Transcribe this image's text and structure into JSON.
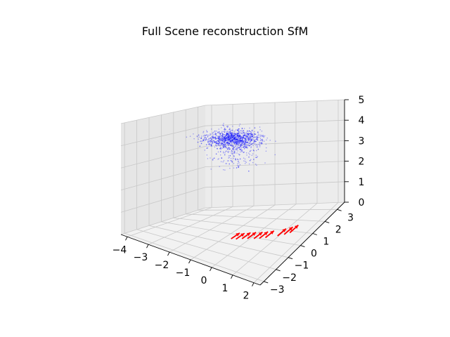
{
  "chart_data": {
    "type": "scatter",
    "projection": "3d",
    "title": "Full Scene reconstruction SfM",
    "xlabel": "",
    "ylabel": "",
    "zlabel": "",
    "xlim": [
      -4.3,
      2.3
    ],
    "ylim": [
      -3.3,
      3.6
    ],
    "zlim": [
      0,
      5
    ],
    "x_ticks": [
      "−4",
      "−3",
      "−2",
      "−1",
      "0",
      "1",
      "2"
    ],
    "y_ticks": [
      "−3",
      "−2",
      "−1",
      "0",
      "1",
      "2",
      "3"
    ],
    "z_ticks": [
      "0",
      "1",
      "2",
      "3",
      "4",
      "5"
    ],
    "grid": true,
    "point_cloud": {
      "color": "#0000ff",
      "marker": "point",
      "approx_count": 1500,
      "extent": {
        "x": [
          -4.2,
          0.6
        ],
        "y": [
          -0.3,
          3.5
        ],
        "z": [
          2.6,
          4.6
        ]
      }
    },
    "cameras": {
      "color": "#ff0000",
      "marker": "arrow",
      "direction": "+y",
      "arrow_length": 0.7,
      "z": 0,
      "positions": [
        {
          "x": -0.7,
          "y": -0.5
        },
        {
          "x": -0.5,
          "y": -0.45
        },
        {
          "x": -0.3,
          "y": -0.3
        },
        {
          "x": -0.1,
          "y": -0.2
        },
        {
          "x": 0.15,
          "y": -0.1
        },
        {
          "x": 0.35,
          "y": 0.0
        },
        {
          "x": 0.55,
          "y": 0.15
        },
        {
          "x": 0.95,
          "y": 0.45
        },
        {
          "x": 1.15,
          "y": 0.65
        },
        {
          "x": 1.3,
          "y": 0.85
        }
      ]
    }
  }
}
